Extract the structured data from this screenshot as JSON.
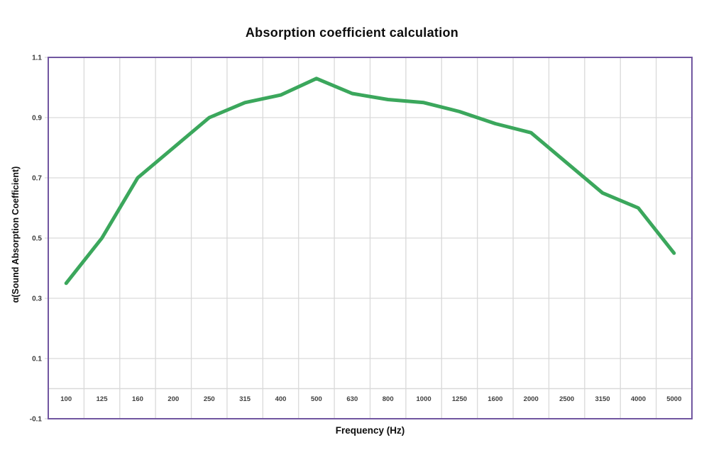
{
  "title": "Absorption coefficient calculation",
  "chart_data": {
    "type": "line",
    "title": "Absorption coefficient calculation",
    "xlabel": "Frequency (Hz)",
    "ylabel": "α(Sound Absorption Coefficient)",
    "categories": [
      "100",
      "125",
      "160",
      "200",
      "250",
      "315",
      "400",
      "500",
      "630",
      "800",
      "1000",
      "1250",
      "1600",
      "2000",
      "2500",
      "3150",
      "4000",
      "5000"
    ],
    "values": [
      0.35,
      0.5,
      0.7,
      0.8,
      0.9,
      0.95,
      0.975,
      1.03,
      0.98,
      0.96,
      0.95,
      0.92,
      0.88,
      0.85,
      0.75,
      0.65,
      0.6,
      0.45
    ],
    "ylim": [
      -0.1,
      1.1
    ],
    "yticks": [
      1.1,
      0.9,
      0.7,
      0.5,
      0.3,
      0.1,
      -0.1
    ],
    "x_axis_at": 0,
    "grid": true,
    "legend": "none",
    "colors": {
      "line": "#3ba75c",
      "plot_border": "#7156a0",
      "gridline": "#d9d9d9",
      "tick_label": "#404040",
      "text": "#0d0d0d",
      "background": "#ffffff"
    }
  }
}
